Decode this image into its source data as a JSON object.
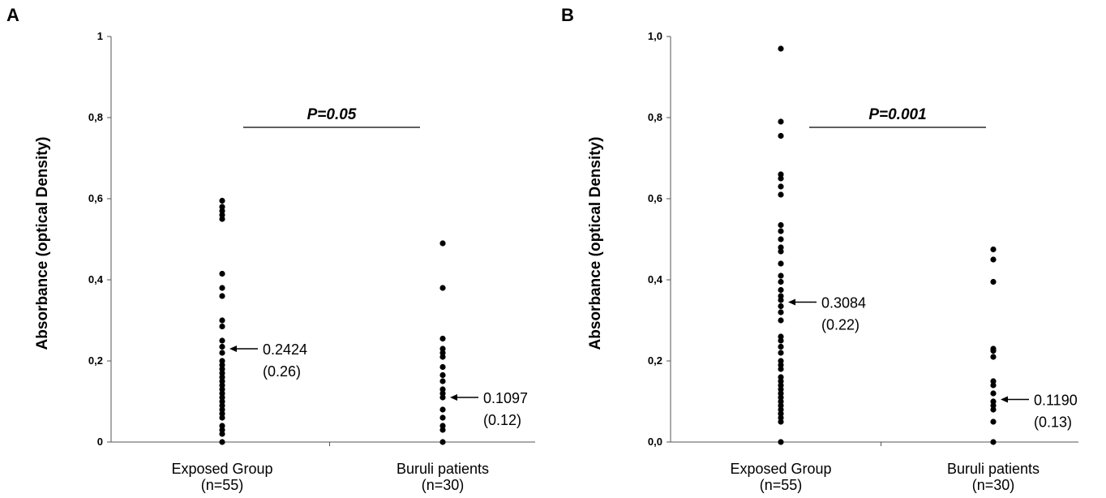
{
  "chart_data": [
    {
      "type": "scatter",
      "panel": "A",
      "ylabel": "Absorbance (optical Density)",
      "ylim": [
        0,
        1
      ],
      "yticks": [
        "0",
        "0,2",
        "0,4",
        "0,6",
        "0,8",
        "1"
      ],
      "categories": [
        "Exposed Group\n(n=55)",
        "Buruli patients\n(n=30)"
      ],
      "series": [
        {
          "values": [
            0.595,
            0.58,
            0.57,
            0.56,
            0.55,
            0.415,
            0.38,
            0.36,
            0.3,
            0.285,
            0.25,
            0.235,
            0.22,
            0.2,
            0.19,
            0.18,
            0.17,
            0.16,
            0.15,
            0.14,
            0.13,
            0.12,
            0.11,
            0.1,
            0.09,
            0.08,
            0.07,
            0.06,
            0.04,
            0.03,
            0.02,
            0.0
          ],
          "annotation": [
            "0.2424",
            "(0.26)"
          ],
          "annotation_y": 0.23
        },
        {
          "values": [
            0.49,
            0.38,
            0.255,
            0.23,
            0.22,
            0.21,
            0.185,
            0.165,
            0.15,
            0.13,
            0.12,
            0.11,
            0.08,
            0.06,
            0.04,
            0.03,
            0.0
          ],
          "annotation": [
            "0.1097",
            "(0.12)"
          ],
          "annotation_y": 0.11
        }
      ],
      "significance": "P=0.05"
    },
    {
      "type": "scatter",
      "panel": "B",
      "ylabel": "Absorbance (optical Density)",
      "ylim": [
        0,
        1
      ],
      "yticks": [
        "0,0",
        "0,2",
        "0,4",
        "0,6",
        "0,8",
        "1,0"
      ],
      "categories": [
        "Exposed Group\n(n=55)",
        "Buruli patients\n(n=30)"
      ],
      "series": [
        {
          "values": [
            0.97,
            0.79,
            0.755,
            0.66,
            0.65,
            0.63,
            0.61,
            0.535,
            0.52,
            0.5,
            0.48,
            0.47,
            0.44,
            0.41,
            0.395,
            0.375,
            0.36,
            0.35,
            0.335,
            0.32,
            0.3,
            0.26,
            0.25,
            0.235,
            0.22,
            0.2,
            0.19,
            0.18,
            0.16,
            0.15,
            0.14,
            0.13,
            0.12,
            0.11,
            0.1,
            0.09,
            0.08,
            0.07,
            0.06,
            0.05,
            0.0
          ],
          "annotation": [
            "0.3084",
            "(0.22)"
          ],
          "annotation_y": 0.345
        },
        {
          "values": [
            0.475,
            0.45,
            0.395,
            0.23,
            0.225,
            0.21,
            0.15,
            0.14,
            0.12,
            0.1,
            0.09,
            0.08,
            0.05,
            0.0
          ],
          "annotation": [
            "0.1190",
            "(0.13)"
          ],
          "annotation_y": 0.105
        }
      ],
      "significance": "P=0.001"
    }
  ]
}
